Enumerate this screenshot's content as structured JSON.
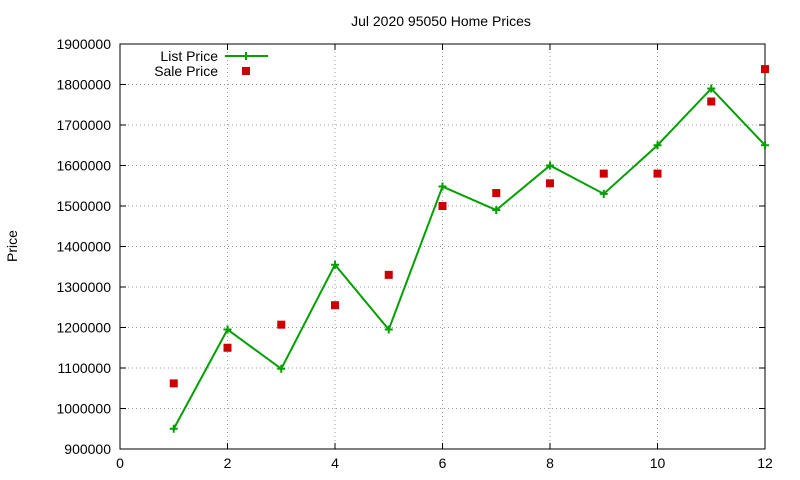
{
  "chart_data": {
    "type": "line",
    "title": "Jul 2020 95050 Home Prices",
    "xlabel": "",
    "ylabel": "Price",
    "xlim": [
      0,
      12
    ],
    "ylim": [
      900000,
      1900000
    ],
    "xticks": [
      0,
      2,
      4,
      6,
      8,
      10,
      12
    ],
    "yticks": [
      900000,
      1000000,
      1100000,
      1200000,
      1300000,
      1400000,
      1500000,
      1600000,
      1700000,
      1800000,
      1900000
    ],
    "grid": true,
    "legend_position": "top-left",
    "series": [
      {
        "name": "List Price",
        "style": "line+plus",
        "color": "#00a000",
        "x": [
          1,
          2,
          3,
          4,
          5,
          6,
          7,
          8,
          9,
          10,
          11,
          12
        ],
        "y": [
          950000,
          1195000,
          1098000,
          1355000,
          1195000,
          1548000,
          1490000,
          1600000,
          1530000,
          1650000,
          1790000,
          1650000
        ]
      },
      {
        "name": "Sale Price",
        "style": "square",
        "color": "#cc0000",
        "x": [
          1,
          2,
          3,
          4,
          5,
          6,
          7,
          8,
          9,
          10,
          11,
          12
        ],
        "y": [
          1062000,
          1150000,
          1207000,
          1255000,
          1330000,
          1500000,
          1532000,
          1556000,
          1580000,
          1580000,
          1758000,
          1838000
        ]
      }
    ]
  }
}
